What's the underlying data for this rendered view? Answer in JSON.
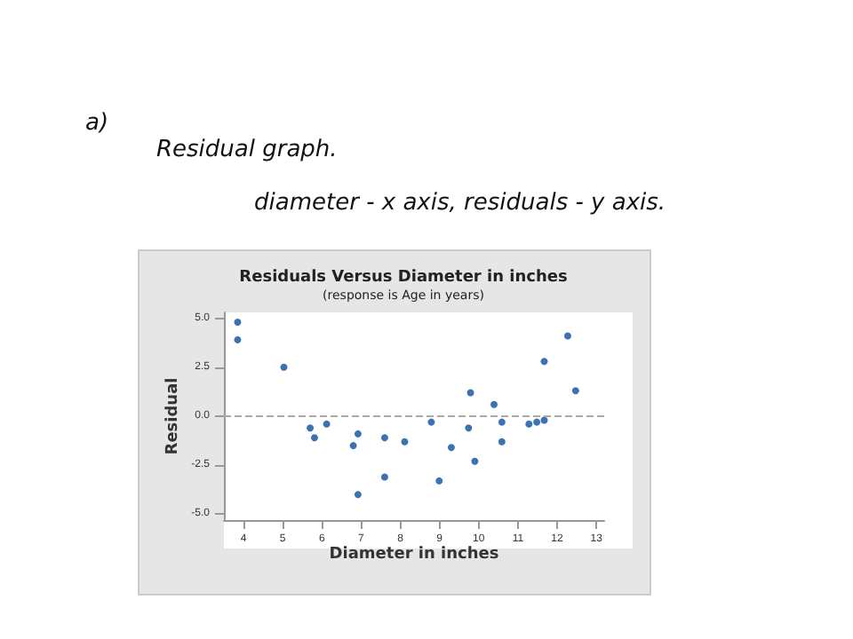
{
  "chart_data": {
    "type": "scatter",
    "title": "Residuals Versus Diameter in inches",
    "subtitle": "(response is Age in years)",
    "xlabel": "Diameter in inches",
    "ylabel": "Residual",
    "annotations": [
      "a)",
      "Residual graph.",
      "diameter - x axis, residuals - y axis."
    ],
    "x": [
      3.85,
      3.85,
      5.03,
      5.7,
      5.81,
      6.12,
      6.8,
      6.92,
      6.92,
      7.6,
      7.6,
      8.11,
      8.79,
      8.99,
      9.3,
      9.74,
      9.79,
      9.9,
      10.39,
      10.59,
      10.59,
      11.28,
      11.48,
      11.67,
      11.67,
      12.27,
      12.47
    ],
    "series": [
      {
        "color": "#0b4f9e",
        "values": [
          4.8,
          3.9,
          2.5,
          -0.6,
          -1.1,
          -0.4,
          -1.5,
          -0.9,
          -4.0,
          -1.1,
          -3.1,
          -1.3,
          -0.3,
          -3.3,
          -1.6,
          -0.6,
          1.2,
          -2.3,
          0.6,
          -0.3,
          -1.3,
          -0.4,
          -0.3,
          -0.2,
          2.8,
          4.1,
          1.3
        ]
      }
    ],
    "xlim": [
      3.5,
      13.2
    ],
    "xticks": [
      4,
      5,
      6,
      7,
      8,
      9,
      10,
      11,
      12,
      13
    ],
    "ylim": [
      -5.3,
      5.3
    ],
    "yticks": [
      {
        "value": -5,
        "label": "-5.0"
      },
      {
        "value": -2.5,
        "label": "-2.5"
      },
      {
        "value": 0,
        "label": "0.0"
      },
      {
        "value": 2.5,
        "label": "2.5"
      },
      {
        "value": 5,
        "label": "5.0"
      }
    ],
    "ref_lines": [
      {
        "axis": "y",
        "value": 0,
        "color": "#aaaaaa",
        "line_style": "dashed"
      }
    ],
    "marker": "circle"
  }
}
